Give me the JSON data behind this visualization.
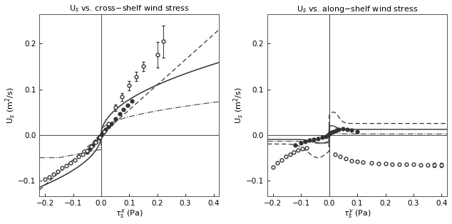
{
  "xlim": [
    -0.22,
    0.42
  ],
  "ylim": [
    -0.135,
    0.265
  ],
  "xticks": [
    -0.2,
    -0.1,
    0,
    0.1,
    0.2,
    0.3,
    0.4
  ],
  "yticks": [
    -0.1,
    0.0,
    0.1,
    0.2
  ],
  "left_open_x": [
    -0.2,
    -0.185,
    -0.17,
    -0.155,
    -0.14,
    -0.125,
    -0.11,
    -0.095,
    -0.08,
    -0.065,
    -0.05,
    -0.035,
    -0.02,
    -0.005,
    0.01,
    0.025,
    0.05,
    0.075,
    0.1,
    0.125,
    0.15,
    0.2,
    0.22
  ],
  "left_open_y": [
    -0.098,
    -0.092,
    -0.086,
    -0.08,
    -0.073,
    -0.067,
    -0.061,
    -0.055,
    -0.048,
    -0.042,
    -0.035,
    -0.026,
    -0.016,
    -0.006,
    0.008,
    0.025,
    0.06,
    0.083,
    0.108,
    0.128,
    0.15,
    0.175,
    0.205
  ],
  "left_open_yerr": [
    0.0,
    0.0,
    0.0,
    0.0,
    0.0,
    0.0,
    0.0,
    0.0,
    0.0,
    0.0,
    0.0,
    0.0,
    0.0,
    0.0,
    0.0,
    0.0,
    0.007,
    0.008,
    0.01,
    0.01,
    0.01,
    0.028,
    0.035
  ],
  "left_filled_x": [
    -0.05,
    -0.04,
    -0.03,
    -0.02,
    -0.01,
    -0.005,
    0.0,
    0.008,
    0.016,
    0.025,
    0.035,
    0.05,
    0.065,
    0.08,
    0.095,
    0.11
  ],
  "left_filled_y": [
    -0.038,
    -0.03,
    -0.022,
    -0.014,
    -0.007,
    -0.003,
    0.0,
    0.005,
    0.012,
    0.018,
    0.025,
    0.035,
    0.046,
    0.056,
    0.065,
    0.075
  ],
  "right_open_neg_x": [
    -0.2,
    -0.185,
    -0.17,
    -0.155,
    -0.14,
    -0.125,
    -0.11,
    -0.095,
    -0.08
  ],
  "right_open_neg_y": [
    -0.07,
    -0.062,
    -0.055,
    -0.048,
    -0.042,
    -0.038,
    -0.033,
    -0.03,
    -0.028
  ],
  "right_open_pos_x": [
    0.02,
    0.04,
    0.06,
    0.08,
    0.1,
    0.12,
    0.15,
    0.175,
    0.2,
    0.225,
    0.25,
    0.275,
    0.3,
    0.325,
    0.35,
    0.375,
    0.4
  ],
  "right_open_pos_y": [
    -0.042,
    -0.048,
    -0.052,
    -0.056,
    -0.058,
    -0.06,
    -0.062,
    -0.063,
    -0.063,
    -0.064,
    -0.065,
    -0.065,
    -0.065,
    -0.066,
    -0.066,
    -0.066,
    -0.066
  ],
  "right_open_pos_yerr_h": [
    0.0,
    0.0,
    0.0,
    0.0,
    0.0,
    0.0,
    0.0,
    0.0,
    0.0,
    0.0,
    0.0,
    0.0,
    0.0,
    0.0,
    0.0,
    0.004,
    0.004
  ],
  "right_open_pos_yerr_l": [
    0.0,
    0.0,
    0.0,
    0.0,
    0.0,
    0.0,
    0.0,
    0.0,
    0.0,
    0.0,
    0.0,
    0.0,
    0.0,
    0.0,
    0.0,
    0.004,
    0.004
  ],
  "right_filled_x": [
    -0.12,
    -0.1,
    -0.085,
    -0.07,
    -0.055,
    -0.04,
    -0.025,
    -0.012,
    -0.005,
    0.0,
    0.008,
    0.015,
    0.025,
    0.035,
    0.05,
    0.065,
    0.08,
    0.1
  ],
  "right_filled_y": [
    -0.022,
    -0.018,
    -0.015,
    -0.012,
    -0.01,
    -0.008,
    -0.006,
    -0.003,
    -0.001,
    0.002,
    0.005,
    0.008,
    0.01,
    0.012,
    0.013,
    0.012,
    0.01,
    0.008
  ],
  "marker_size": 3.5,
  "marker_lw": 0.7
}
